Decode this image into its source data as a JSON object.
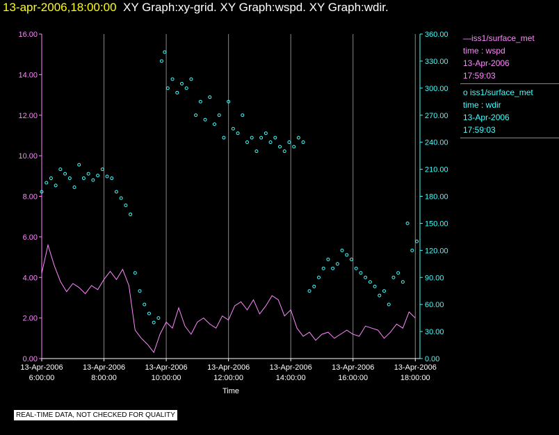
{
  "title": {
    "timestamp": "13-apr-2006,18:00:00",
    "graphs": "XY Graph:xy-grid.  XY Graph:wspd.  XY Graph:wdir."
  },
  "legend": [
    {
      "line1": "—iss1/surface_met",
      "line2": "time : wspd",
      "line3": "13-Apr-2006",
      "line4": "17:59:03",
      "color": "#ff88ff"
    },
    {
      "line1": "o  iss1/surface_met",
      "line2": "time : wdir",
      "line3": "13-Apr-2006",
      "line4": "17:59:03",
      "color": "#44ffff"
    }
  ],
  "disclaimer": "REAL-TIME DATA, NOT CHECKED FOR QUALITY",
  "chart_data": {
    "type": "line",
    "xlabel": "Time",
    "xlim": [
      6.0,
      18.15
    ],
    "x_ticks": [
      6,
      8,
      10,
      12,
      14,
      16,
      18
    ],
    "x_tick_labels": [
      [
        "13-Apr-2006",
        "6:00:00"
      ],
      [
        "13-Apr-2006",
        "8:00:00"
      ],
      [
        "13-Apr-2006",
        "10:00:00"
      ],
      [
        "13-Apr-2006",
        "12:00:00"
      ],
      [
        "13-Apr-2006",
        "14:00:00"
      ],
      [
        "13-Apr-2006",
        "16:00:00"
      ],
      [
        "13-Apr-2006",
        "18:00:00"
      ]
    ],
    "y_left": {
      "lim": [
        0,
        16
      ],
      "ticks": [
        "0.00",
        "2.00",
        "4.00",
        "6.00",
        "8.00",
        "10.00",
        "12.00",
        "14.00",
        "16.00"
      ],
      "color": "#ff88ff"
    },
    "y_right": {
      "lim": [
        0,
        360
      ],
      "ticks": [
        "0.00",
        "30.00",
        "60.00",
        "90.00",
        "120.00",
        "150.00",
        "180.00",
        "210.00",
        "240.00",
        "270.00",
        "300.00",
        "330.00",
        "360.00"
      ],
      "color": "#44ffff"
    },
    "grid": "vertical",
    "series": [
      {
        "name": "time : wspd",
        "style": "line",
        "axis": "left",
        "color": "#ff88ff",
        "x": [
          6.0,
          6.2,
          6.4,
          6.6,
          6.8,
          7.0,
          7.2,
          7.4,
          7.6,
          7.8,
          8.0,
          8.2,
          8.4,
          8.6,
          8.8,
          8.9,
          9.0,
          9.2,
          9.4,
          9.6,
          9.8,
          10.0,
          10.2,
          10.4,
          10.6,
          10.8,
          11.0,
          11.2,
          11.4,
          11.6,
          11.8,
          12.0,
          12.2,
          12.4,
          12.6,
          12.8,
          13.0,
          13.2,
          13.4,
          13.6,
          13.8,
          14.0,
          14.2,
          14.4,
          14.6,
          14.8,
          15.0,
          15.2,
          15.4,
          15.6,
          15.8,
          16.0,
          16.2,
          16.4,
          16.6,
          16.8,
          17.0,
          17.2,
          17.4,
          17.6,
          17.8,
          18.0
        ],
        "y": [
          4.2,
          5.6,
          4.6,
          3.8,
          3.3,
          3.7,
          3.5,
          3.2,
          3.6,
          3.4,
          3.9,
          4.3,
          3.9,
          4.4,
          3.6,
          2.5,
          1.4,
          1.0,
          0.7,
          0.3,
          1.2,
          1.8,
          1.5,
          2.5,
          1.6,
          1.2,
          1.8,
          2.0,
          1.7,
          1.5,
          2.1,
          1.9,
          2.6,
          2.8,
          2.4,
          2.9,
          2.2,
          2.6,
          3.1,
          2.9,
          2.1,
          2.4,
          1.5,
          1.1,
          1.3,
          0.9,
          1.2,
          1.3,
          1.0,
          1.2,
          1.4,
          1.2,
          1.1,
          1.6,
          1.5,
          1.4,
          1.0,
          1.3,
          1.7,
          1.5,
          2.3,
          2.0
        ]
      },
      {
        "name": "time : wdir",
        "style": "markers",
        "axis": "right",
        "color": "#44ffff",
        "x": [
          6.0,
          6.15,
          6.3,
          6.45,
          6.6,
          6.75,
          6.9,
          7.05,
          7.2,
          7.35,
          7.5,
          7.65,
          7.8,
          7.95,
          8.1,
          8.25,
          8.4,
          8.55,
          8.7,
          8.85,
          9.0,
          9.15,
          9.3,
          9.45,
          9.6,
          9.75,
          9.85,
          9.95,
          10.05,
          10.2,
          10.35,
          10.5,
          10.65,
          10.8,
          10.95,
          11.1,
          11.25,
          11.4,
          11.55,
          11.7,
          11.85,
          12.0,
          12.15,
          12.3,
          12.45,
          12.6,
          12.75,
          12.9,
          13.05,
          13.2,
          13.35,
          13.5,
          13.65,
          13.8,
          13.95,
          14.1,
          14.25,
          14.4,
          14.6,
          14.75,
          14.9,
          15.05,
          15.2,
          15.35,
          15.5,
          15.65,
          15.8,
          15.95,
          16.1,
          16.25,
          16.4,
          16.55,
          16.7,
          16.85,
          17.0,
          17.15,
          17.3,
          17.45,
          17.6,
          17.75,
          17.9,
          18.05
        ],
        "y": [
          185,
          195,
          200,
          192,
          210,
          205,
          200,
          190,
          215,
          200,
          205,
          198,
          203,
          210,
          202,
          200,
          185,
          178,
          170,
          160,
          95,
          75,
          60,
          50,
          40,
          45,
          330,
          340,
          300,
          310,
          295,
          305,
          300,
          310,
          270,
          285,
          265,
          290,
          260,
          270,
          245,
          285,
          255,
          250,
          270,
          240,
          245,
          230,
          245,
          250,
          240,
          245,
          235,
          230,
          240,
          235,
          245,
          240,
          75,
          80,
          90,
          100,
          110,
          100,
          105,
          120,
          115,
          110,
          100,
          95,
          90,
          85,
          80,
          70,
          75,
          60,
          90,
          95,
          85,
          150,
          120,
          130
        ]
      }
    ]
  }
}
